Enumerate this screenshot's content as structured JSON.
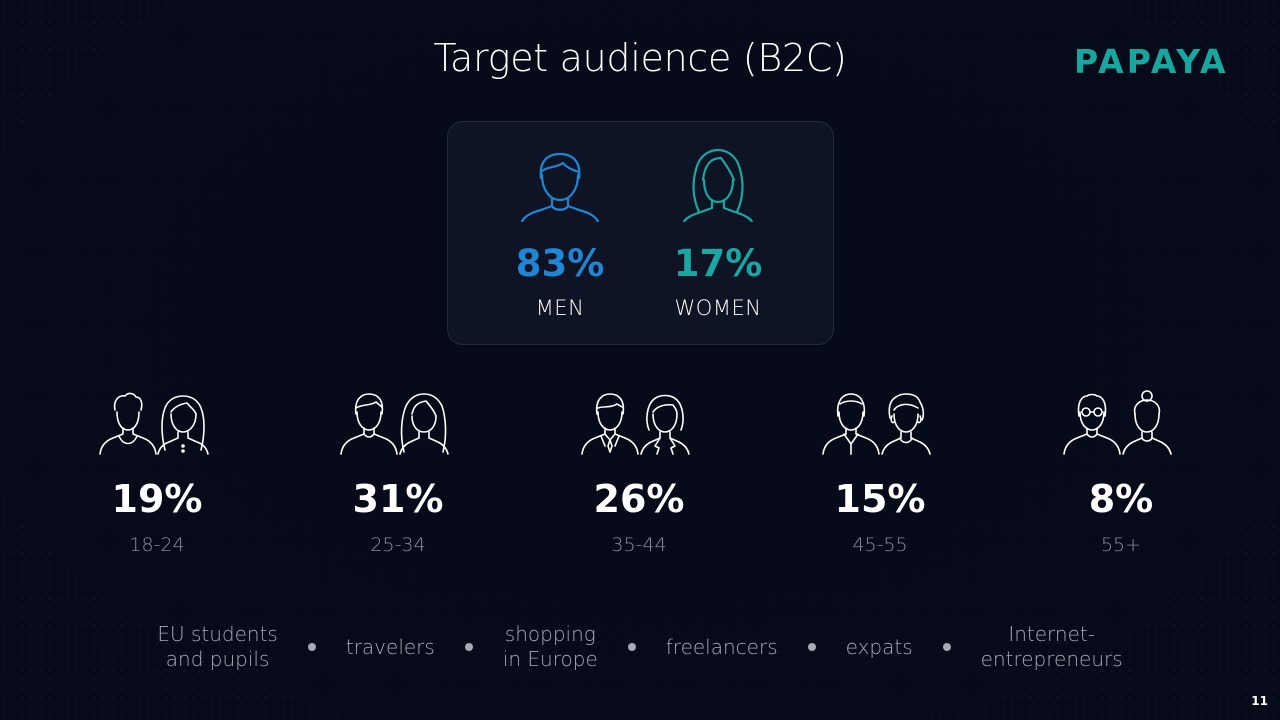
{
  "title": "Target audience (B2C)",
  "logo": "PAPAYA",
  "colors": {
    "men": "#1f86d6",
    "women": "#1aa6a3",
    "background": "#070a19",
    "brand": "#17a79e"
  },
  "gender": {
    "men": {
      "icon": "man-icon",
      "percent": "83%",
      "label": "MEN"
    },
    "women": {
      "icon": "woman-icon",
      "percent": "17%",
      "label": "WOMEN"
    }
  },
  "age_groups": [
    {
      "icon": "young-couple-icon",
      "percent": "19%",
      "range": "18-24"
    },
    {
      "icon": "adult-couple-icon",
      "percent": "31%",
      "range": "25-34"
    },
    {
      "icon": "business-couple-icon",
      "percent": "26%",
      "range": "35-44"
    },
    {
      "icon": "middle-aged-couple-icon",
      "percent": "15%",
      "range": "45-55"
    },
    {
      "icon": "senior-couple-icon",
      "percent": "8%",
      "range": "55+"
    }
  ],
  "segments": [
    {
      "line1": "EU students",
      "line2": "and pupils"
    },
    {
      "line1": "travelers",
      "line2": ""
    },
    {
      "line1": "shopping",
      "line2": "in Europe"
    },
    {
      "line1": "freelancers",
      "line2": ""
    },
    {
      "line1": "expats",
      "line2": ""
    },
    {
      "line1": "Internet-",
      "line2": "entrepreneurs"
    }
  ],
  "page_number": "11"
}
